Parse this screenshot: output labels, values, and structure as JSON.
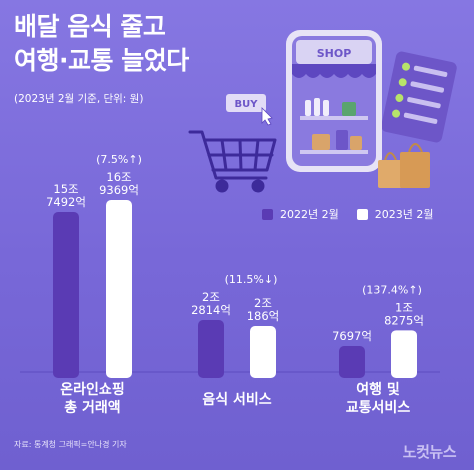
{
  "header": {
    "title_line1": "배달 음식 줄고",
    "title_line2": "여행·교통 늘었다",
    "subtitle": "(2023년 2월 기준, 단위: 원)"
  },
  "illustration": {
    "shop_sign": "SHOP",
    "buy_sign": "BUY"
  },
  "footer": {
    "credit": "자료: 통계청    그래픽=안나경 기자",
    "logo": "노컷뉴스"
  },
  "colors": {
    "series_2022": "#5a3bb4",
    "series_2023": "#ffffff",
    "background": "#7b6ad8"
  },
  "chart_data": {
    "type": "bar",
    "categories": [
      "온라인쇼핑 총 거래액",
      "음식 서비스",
      "여행 및 교통서비스"
    ],
    "category_lines": [
      [
        "온라인쇼핑",
        "총 거래액"
      ],
      [
        "음식 서비스"
      ],
      [
        "여행 및",
        "교통서비스"
      ]
    ],
    "series": [
      {
        "name": "2022년 2월",
        "values": [
          157492,
          22814,
          7697
        ],
        "labels": [
          [
            "15조",
            "7492억"
          ],
          [
            "2조",
            "2814억"
          ],
          [
            "7697억"
          ]
        ]
      },
      {
        "name": "2023년 2월",
        "values": [
          169369,
          20186,
          18275
        ],
        "labels": [
          [
            "16조",
            "9369억"
          ],
          [
            "2조",
            "186억"
          ],
          [
            "1조",
            "8275억"
          ]
        ]
      }
    ],
    "value_unit": "억 원",
    "changes": [
      "(7.5%↑)",
      "(11.5%↓)",
      "(137.4%↑)"
    ],
    "legend": [
      "2022년 2월",
      "2023년 2월"
    ],
    "legend_position": "top-right"
  }
}
